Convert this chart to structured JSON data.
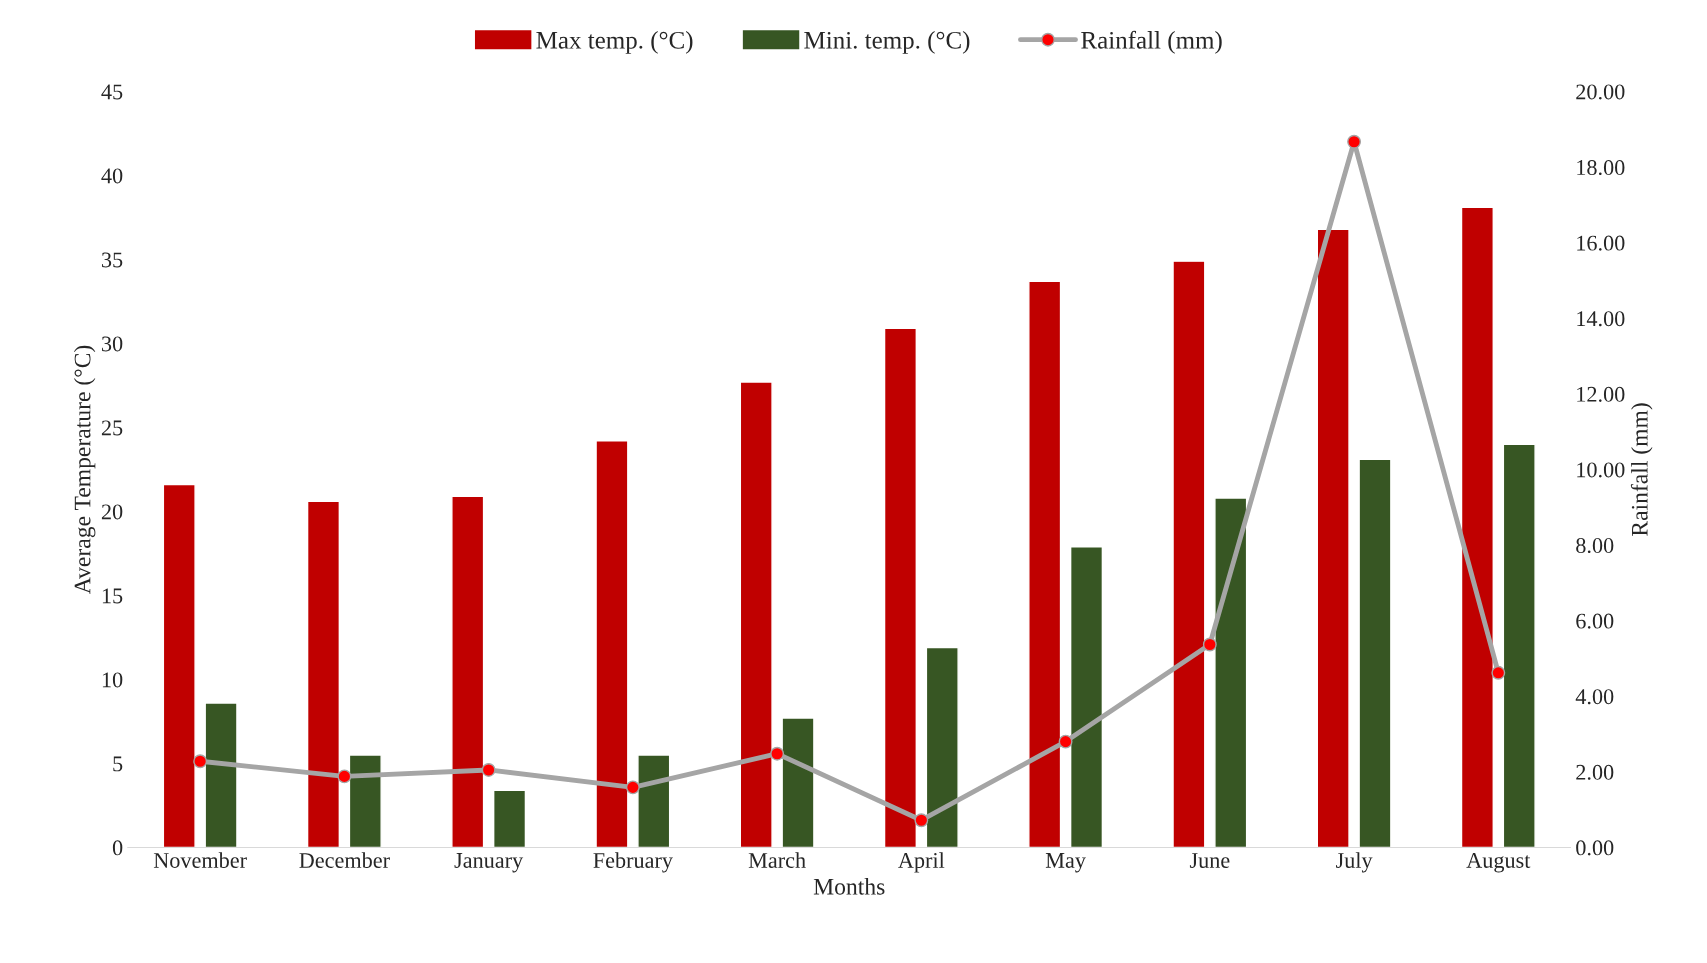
{
  "chart_data": {
    "type": "bar",
    "xlabel": "Months",
    "ylabel": "Average Temperature (°C)",
    "y2label": "Rainfall (mm)",
    "categories": [
      "November",
      "December",
      "January",
      "February",
      "March",
      "April",
      "May",
      "June",
      "July",
      "August"
    ],
    "series": [
      {
        "name": "Max temp. (°C)",
        "color": "#c00000",
        "values": [
          21.6,
          20.6,
          20.9,
          24.2,
          27.7,
          30.9,
          33.7,
          34.9,
          36.8,
          38.1
        ]
      },
      {
        "name": "Mini. temp. (°C)",
        "color": "#375623",
        "values": [
          8.6,
          5.5,
          3.4,
          5.5,
          7.7,
          11.9,
          17.9,
          20.8,
          23.1,
          24.0
        ]
      },
      {
        "name": "Rainfall (mm)",
        "type": "line",
        "axis": "y2",
        "color": "#a5a5a5",
        "marker": "circle",
        "values": [
          2.28,
          1.88,
          2.05,
          1.59,
          2.48,
          0.72,
          2.8,
          5.37,
          18.67,
          4.62
        ]
      }
    ],
    "ylim": [
      0,
      45
    ],
    "yticks": [
      0,
      5,
      10,
      15,
      20,
      25,
      30,
      35,
      40,
      45
    ],
    "y2lim": [
      0,
      20
    ],
    "y2ticks": [
      {
        "value": 0,
        "label": "0.00"
      },
      {
        "value": 2,
        "label": "2.00"
      },
      {
        "value": 4,
        "label": "4.00"
      },
      {
        "value": 6,
        "label": "6.00"
      },
      {
        "value": 8,
        "label": "8.00"
      },
      {
        "value": 10,
        "label": "10.00"
      },
      {
        "value": 12,
        "label": "12.00"
      },
      {
        "value": 14,
        "label": "14.00"
      },
      {
        "value": 16,
        "label": "16.00"
      },
      {
        "value": 18,
        "label": "18.00"
      },
      {
        "value": 20,
        "label": "20.00"
      }
    ],
    "grid": false,
    "legend": "top"
  }
}
